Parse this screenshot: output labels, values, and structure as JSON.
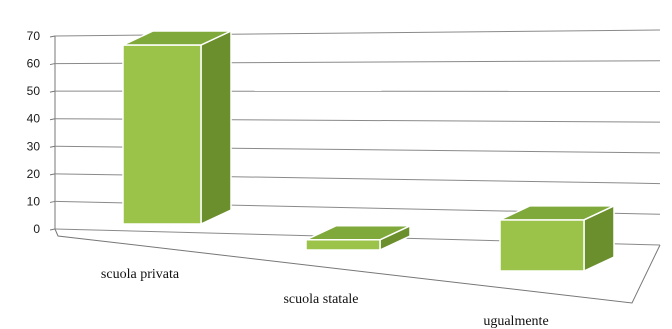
{
  "chart_data": {
    "type": "bar",
    "title": "",
    "xlabel": "",
    "ylabel": "",
    "categories": [
      "scuola privata",
      "scuola statale",
      "ugualmente"
    ],
    "values": [
      70,
      4,
      20
    ],
    "ylim": [
      0,
      70
    ],
    "yticks": [
      0,
      10,
      20,
      30,
      40,
      50,
      60,
      70
    ],
    "grid": true,
    "three_d": true,
    "colors": {
      "front": "#9bc349",
      "side": "#6c8f2e",
      "top": "#7fa93a",
      "edge": "#ffffff"
    }
  }
}
